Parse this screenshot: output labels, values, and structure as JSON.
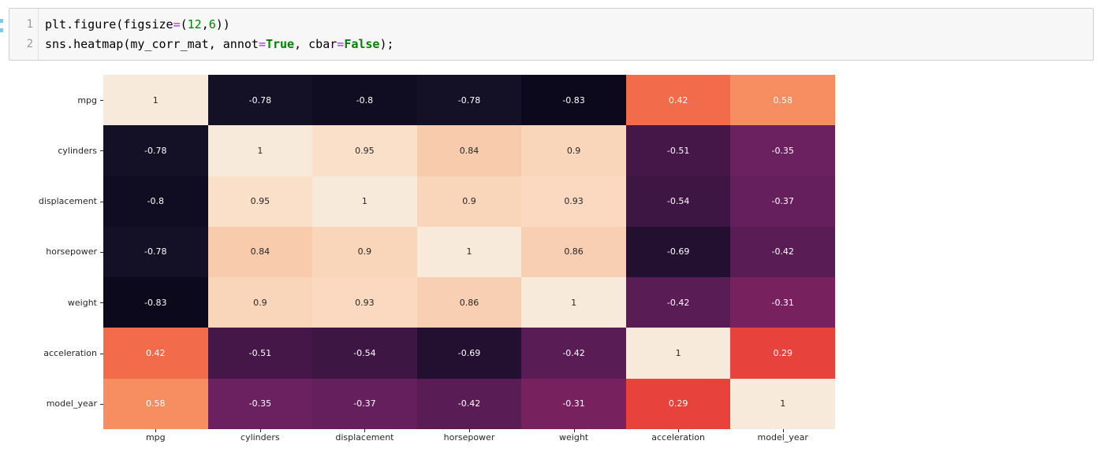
{
  "code_cell": {
    "background": "#f7f7f7",
    "border_color": "#cfcfcf",
    "line_number_color": "#999999",
    "line_numbers": [
      "1",
      "2"
    ],
    "syntax_colors": {
      "default": "#000000",
      "operator": "#aa22ff",
      "number": "#008000",
      "keyword": "#008000"
    },
    "lines": [
      [
        {
          "t": "plt.figure(figsize",
          "c": "default"
        },
        {
          "t": "=",
          "c": "operator"
        },
        {
          "t": "(",
          "c": "default"
        },
        {
          "t": "12",
          "c": "number"
        },
        {
          "t": ",",
          "c": "default"
        },
        {
          "t": "6",
          "c": "number"
        },
        {
          "t": "))",
          "c": "default"
        }
      ],
      [
        {
          "t": "sns.heatmap(my_corr_mat, annot",
          "c": "default"
        },
        {
          "t": "=",
          "c": "operator"
        },
        {
          "t": "True",
          "c": "keyword"
        },
        {
          "t": ", cbar",
          "c": "default"
        },
        {
          "t": "=",
          "c": "operator"
        },
        {
          "t": "False",
          "c": "keyword"
        },
        {
          "t": ");",
          "c": "default"
        }
      ]
    ]
  },
  "chart_data": {
    "type": "heatmap",
    "title": "",
    "annot": true,
    "cbar": false,
    "colormap": "rocket",
    "tick_label_color": "#262626",
    "annot_dark_text": "#262626",
    "annot_light_text": "#ffffff",
    "categories": [
      "mpg",
      "cylinders",
      "displacement",
      "horsepower",
      "weight",
      "acceleration",
      "model_year"
    ],
    "matrix": [
      [
        1,
        -0.78,
        -0.8,
        -0.78,
        -0.83,
        0.42,
        0.58
      ],
      [
        -0.78,
        1,
        0.95,
        0.84,
        0.9,
        -0.51,
        -0.35
      ],
      [
        -0.8,
        0.95,
        1,
        0.9,
        0.93,
        -0.54,
        -0.37
      ],
      [
        -0.78,
        0.84,
        0.9,
        1,
        0.86,
        -0.69,
        -0.42
      ],
      [
        -0.83,
        0.9,
        0.93,
        0.86,
        1,
        -0.42,
        -0.31
      ],
      [
        0.42,
        -0.51,
        -0.54,
        -0.69,
        -0.42,
        1,
        0.29
      ],
      [
        0.58,
        -0.35,
        -0.37,
        -0.42,
        -0.31,
        0.29,
        1
      ]
    ],
    "labels": [
      [
        "1",
        "-0.78",
        "-0.8",
        "-0.78",
        "-0.83",
        "0.42",
        "0.58"
      ],
      [
        "-0.78",
        "1",
        "0.95",
        "0.84",
        "0.9",
        "-0.51",
        "-0.35"
      ],
      [
        "-0.8",
        "0.95",
        "1",
        "0.9",
        "0.93",
        "-0.54",
        "-0.37"
      ],
      [
        "-0.78",
        "0.84",
        "0.9",
        "1",
        "0.86",
        "-0.69",
        "-0.42"
      ],
      [
        "-0.83",
        "0.9",
        "0.93",
        "0.86",
        "1",
        "-0.42",
        "-0.31"
      ],
      [
        "0.42",
        "-0.51",
        "-0.54",
        "-0.69",
        "-0.42",
        "1",
        "0.29"
      ],
      [
        "0.58",
        "-0.35",
        "-0.37",
        "-0.42",
        "-0.31",
        "0.29",
        "1"
      ]
    ],
    "cell_colors": [
      [
        "#f7eada",
        "#141026",
        "#100d22",
        "#141026",
        "#0c091d",
        "#f26b4b",
        "#f68e62"
      ],
      [
        "#141026",
        "#f7eada",
        "#fadfc9",
        "#f7cbab",
        "#f9d5ba",
        "#451748",
        "#6b2060"
      ],
      [
        "#100d22",
        "#fadfc9",
        "#f7eada",
        "#f9d5ba",
        "#fad9c0",
        "#3e1643",
        "#661f5d"
      ],
      [
        "#141026",
        "#f7cbab",
        "#f9d5ba",
        "#f7eada",
        "#f8cfb2",
        "#231031",
        "#5a1c55"
      ],
      [
        "#0c091d",
        "#f9d5ba",
        "#fad9c0",
        "#f8cfb2",
        "#f7eada",
        "#5a1c55",
        "#78215f"
      ],
      [
        "#f26b4b",
        "#451748",
        "#3e1643",
        "#231031",
        "#5a1c55",
        "#f7eada",
        "#e8423d"
      ],
      [
        "#f68e62",
        "#6b2060",
        "#661f5d",
        "#5a1c55",
        "#78215f",
        "#e8423d",
        "#f7eada"
      ]
    ]
  }
}
